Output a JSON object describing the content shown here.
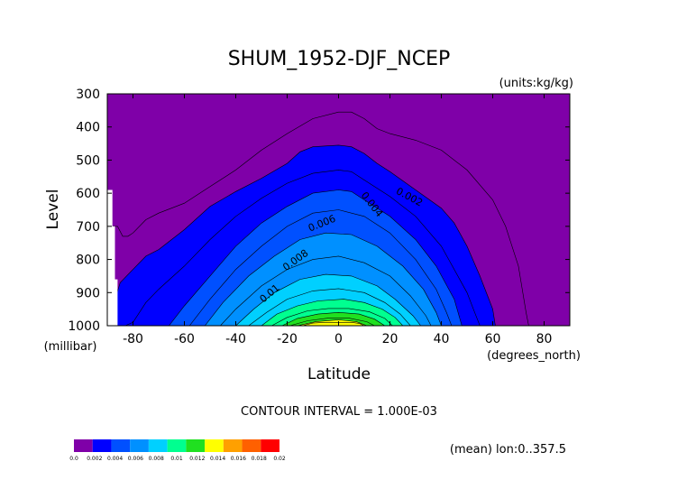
{
  "chart_data": {
    "type": "contour",
    "title": "SHUM_1952-DJF_NCEP",
    "units_label": "(units:kg/kg)",
    "xlabel": "Latitude",
    "ylabel": "Level",
    "x_unit_label": "(degrees_north)",
    "y_unit_label": "(millibar)",
    "xlim": [
      -90,
      90
    ],
    "ylim": [
      300,
      1000
    ],
    "y_reversed": true,
    "x_ticks": [
      -80,
      -60,
      -40,
      -20,
      0,
      20,
      40,
      60,
      80
    ],
    "x_tick_labels": [
      "-80",
      "-60",
      "-40",
      "-20",
      "0",
      "20",
      "40",
      "60",
      "80"
    ],
    "y_ticks": [
      300,
      400,
      500,
      600,
      700,
      800,
      900,
      1000
    ],
    "y_tick_labels": [
      "300",
      "400",
      "500",
      "600",
      "700",
      "800",
      "900",
      "1000"
    ],
    "contour_interval_text": "CONTOUR INTERVAL = 1.000E-03",
    "footnote": "(mean) lon:0..357.5",
    "levels": [
      0.0,
      0.002,
      0.004,
      0.006,
      0.008,
      0.01,
      0.012,
      0.014,
      0.016,
      0.018,
      0.02
    ],
    "level_labels": [
      "0.0",
      "0.002",
      "0.004",
      "0.006",
      "0.008",
      "0.01",
      "0.012",
      "0.014",
      "0.016",
      "0.018",
      "0.02"
    ],
    "fill_colors": [
      "#7f00a8",
      "#0000ff",
      "#0050ff",
      "#0090ff",
      "#00d0ff",
      "#00ff90",
      "#20e020",
      "#ffff00",
      "#ffa000",
      "#ff6000",
      "#ff0000"
    ],
    "contour_labels": [
      "0.002",
      "0.004",
      "0.006",
      "0.008",
      "0.01"
    ],
    "contours": [
      {
        "level": 0.001,
        "filled": false,
        "points": [
          [
            -88,
            700
          ],
          [
            -86,
            700
          ],
          [
            -84,
            730
          ],
          [
            -82,
            730
          ],
          [
            -80,
            720
          ],
          [
            -75,
            680
          ],
          [
            -70,
            660
          ],
          [
            -65,
            645
          ],
          [
            -60,
            630
          ],
          [
            -50,
            580
          ],
          [
            -40,
            530
          ],
          [
            -30,
            470
          ],
          [
            -20,
            420
          ],
          [
            -10,
            375
          ],
          [
            0,
            355
          ],
          [
            5,
            355
          ],
          [
            10,
            375
          ],
          [
            15,
            405
          ],
          [
            20,
            420
          ],
          [
            30,
            440
          ],
          [
            40,
            470
          ],
          [
            50,
            530
          ],
          [
            60,
            620
          ],
          [
            65,
            700
          ],
          [
            70,
            820
          ],
          [
            73,
            960
          ],
          [
            74,
            1000
          ]
        ]
      },
      {
        "level": 0.002,
        "filled": true,
        "points": [
          [
            -88,
            1000
          ],
          [
            -88,
            900
          ],
          [
            -87,
            920
          ],
          [
            -85,
            870
          ],
          [
            -80,
            830
          ],
          [
            -75,
            790
          ],
          [
            -70,
            770
          ],
          [
            -60,
            710
          ],
          [
            -50,
            640
          ],
          [
            -40,
            595
          ],
          [
            -30,
            555
          ],
          [
            -20,
            510
          ],
          [
            -15,
            475
          ],
          [
            -10,
            460
          ],
          [
            0,
            455
          ],
          [
            5,
            460
          ],
          [
            10,
            480
          ],
          [
            15,
            510
          ],
          [
            20,
            535
          ],
          [
            30,
            590
          ],
          [
            40,
            645
          ],
          [
            45,
            690
          ],
          [
            50,
            760
          ],
          [
            55,
            850
          ],
          [
            60,
            950
          ],
          [
            61,
            1000
          ]
        ]
      },
      {
        "level": 0.003,
        "filled": true,
        "points": [
          [
            -83,
            1000
          ],
          [
            -80,
            990
          ],
          [
            -75,
            930
          ],
          [
            -70,
            890
          ],
          [
            -60,
            820
          ],
          [
            -50,
            740
          ],
          [
            -40,
            670
          ],
          [
            -30,
            615
          ],
          [
            -20,
            570
          ],
          [
            -10,
            540
          ],
          [
            0,
            530
          ],
          [
            5,
            535
          ],
          [
            10,
            560
          ],
          [
            20,
            610
          ],
          [
            30,
            670
          ],
          [
            40,
            760
          ],
          [
            45,
            830
          ],
          [
            50,
            900
          ],
          [
            53,
            960
          ],
          [
            55,
            1000
          ]
        ]
      },
      {
        "level": 0.004,
        "filled": true,
        "points": [
          [
            -66,
            1000
          ],
          [
            -60,
            940
          ],
          [
            -50,
            850
          ],
          [
            -40,
            760
          ],
          [
            -30,
            690
          ],
          [
            -20,
            640
          ],
          [
            -10,
            600
          ],
          [
            0,
            590
          ],
          [
            5,
            595
          ],
          [
            10,
            620
          ],
          [
            20,
            670
          ],
          [
            30,
            740
          ],
          [
            38,
            820
          ],
          [
            45,
            920
          ],
          [
            48,
            1000
          ]
        ]
      },
      {
        "level": 0.005,
        "filled": true,
        "points": [
          [
            -58,
            1000
          ],
          [
            -50,
            920
          ],
          [
            -40,
            830
          ],
          [
            -30,
            760
          ],
          [
            -20,
            700
          ],
          [
            -10,
            660
          ],
          [
            0,
            650
          ],
          [
            10,
            670
          ],
          [
            20,
            720
          ],
          [
            30,
            800
          ],
          [
            38,
            890
          ],
          [
            42,
            960
          ],
          [
            44,
            1000
          ]
        ]
      },
      {
        "level": 0.006,
        "filled": true,
        "points": [
          [
            -52,
            1000
          ],
          [
            -45,
            930
          ],
          [
            -35,
            850
          ],
          [
            -25,
            790
          ],
          [
            -15,
            740
          ],
          [
            -5,
            720
          ],
          [
            5,
            725
          ],
          [
            15,
            760
          ],
          [
            25,
            820
          ],
          [
            33,
            890
          ],
          [
            38,
            960
          ],
          [
            40,
            1000
          ]
        ]
      },
      {
        "level": 0.007,
        "filled": true,
        "points": [
          [
            -46,
            1000
          ],
          [
            -40,
            950
          ],
          [
            -30,
            880
          ],
          [
            -20,
            830
          ],
          [
            -10,
            800
          ],
          [
            0,
            790
          ],
          [
            10,
            810
          ],
          [
            20,
            850
          ],
          [
            28,
            910
          ],
          [
            34,
            970
          ],
          [
            36,
            1000
          ]
        ]
      },
      {
        "level": 0.008,
        "filled": true,
        "points": [
          [
            -40,
            1000
          ],
          [
            -33,
            950
          ],
          [
            -25,
            900
          ],
          [
            -15,
            860
          ],
          [
            -5,
            845
          ],
          [
            5,
            850
          ],
          [
            15,
            880
          ],
          [
            22,
            920
          ],
          [
            29,
            970
          ],
          [
            32,
            1000
          ]
        ]
      },
      {
        "level": 0.009,
        "filled": true,
        "points": [
          [
            -35,
            1000
          ],
          [
            -28,
            960
          ],
          [
            -20,
            920
          ],
          [
            -10,
            895
          ],
          [
            0,
            888
          ],
          [
            10,
            900
          ],
          [
            18,
            930
          ],
          [
            24,
            965
          ],
          [
            28,
            1000
          ]
        ]
      },
      {
        "level": 0.01,
        "filled": true,
        "points": [
          [
            -30,
            1000
          ],
          [
            -24,
            965
          ],
          [
            -16,
            940
          ],
          [
            -8,
            925
          ],
          [
            2,
            920
          ],
          [
            10,
            930
          ],
          [
            17,
            950
          ],
          [
            22,
            975
          ],
          [
            25,
            1000
          ]
        ]
      },
      {
        "level": 0.011,
        "filled": true,
        "points": [
          [
            -26,
            1000
          ],
          [
            -20,
            975
          ],
          [
            -12,
            955
          ],
          [
            -4,
            948
          ],
          [
            4,
            948
          ],
          [
            12,
            958
          ],
          [
            18,
            978
          ],
          [
            21,
            1000
          ]
        ]
      },
      {
        "level": 0.012,
        "filled": true,
        "points": [
          [
            -22,
            1000
          ],
          [
            -16,
            978
          ],
          [
            -8,
            965
          ],
          [
            0,
            960
          ],
          [
            8,
            965
          ],
          [
            14,
            980
          ],
          [
            18,
            1000
          ]
        ]
      },
      {
        "level": 0.013,
        "filled": true,
        "points": [
          [
            -19,
            1000
          ],
          [
            -12,
            985
          ],
          [
            -4,
            977
          ],
          [
            4,
            977
          ],
          [
            11,
            988
          ],
          [
            14,
            1000
          ]
        ]
      },
      {
        "level": 0.014,
        "filled": true,
        "points": [
          [
            -16,
            1000
          ],
          [
            -9,
            988
          ],
          [
            0,
            982
          ],
          [
            7,
            988
          ],
          [
            11,
            1000
          ]
        ]
      },
      {
        "level": 0.015,
        "filled": true,
        "points": [
          [
            -14,
            1000
          ],
          [
            -10,
            992
          ],
          [
            -5,
            990
          ],
          [
            0,
            990
          ],
          [
            5,
            990
          ],
          [
            8,
            993
          ],
          [
            10,
            1000
          ]
        ]
      }
    ],
    "missing_regions": [
      {
        "points": [
          [
            -90,
            1000
          ],
          [
            -90,
            590
          ],
          [
            -88,
            590
          ],
          [
            -88,
            700
          ],
          [
            -87,
            700
          ],
          [
            -87,
            860
          ],
          [
            -86,
            860
          ],
          [
            -86,
            1000
          ]
        ]
      }
    ]
  }
}
